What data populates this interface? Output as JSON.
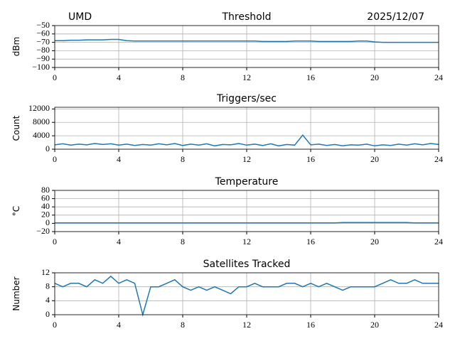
{
  "header": {
    "left": "UMD",
    "right": "2025/12/07"
  },
  "chart_data": [
    {
      "type": "line",
      "title": "Threshold",
      "ylabel": "dBm",
      "x": [
        0,
        0.5,
        1,
        1.5,
        2,
        2.5,
        3,
        3.5,
        4,
        4.5,
        5,
        5.5,
        6,
        6.5,
        7,
        7.5,
        8,
        8.5,
        9,
        9.5,
        10,
        10.5,
        11,
        11.5,
        12,
        12.5,
        13,
        13.5,
        14,
        14.5,
        15,
        15.5,
        16,
        16.5,
        17,
        17.5,
        18,
        18.5,
        19,
        19.5,
        20,
        20.5,
        21,
        21.5,
        22,
        22.5,
        23,
        23.5,
        24
      ],
      "series": [
        {
          "color": "#1f77b4",
          "values": [
            -68,
            -68,
            -67.5,
            -67.5,
            -67,
            -67,
            -67,
            -66.5,
            -66.5,
            -68,
            -68.5,
            -68.5,
            -68.5,
            -68.5,
            -68.5,
            -68.5,
            -68.5,
            -68.5,
            -68.5,
            -68.5,
            -68.5,
            -68.5,
            -68.5,
            -68.5,
            -68.5,
            -68.5,
            -69,
            -69,
            -69,
            -69,
            -68.5,
            -68.5,
            -68.5,
            -69,
            -69,
            -69,
            -69,
            -69,
            -68.5,
            -68.5,
            -69.5,
            -70,
            -70,
            -70,
            -70,
            -70,
            -70,
            -70,
            -70
          ]
        }
      ],
      "xlim": [
        0,
        24
      ],
      "xticks": [
        0,
        4,
        8,
        12,
        16,
        20,
        24
      ],
      "ylim": [
        -100,
        -50
      ],
      "yticks": [
        {
          "value": -100,
          "label": "−100"
        },
        {
          "value": -90,
          "label": "−90"
        },
        {
          "value": -80,
          "label": "−80"
        },
        {
          "value": -70,
          "label": "−70"
        },
        {
          "value": -60,
          "label": "−60"
        },
        {
          "value": -50,
          "label": "−50"
        }
      ],
      "grid": true
    },
    {
      "type": "line",
      "title": "Triggers/sec",
      "ylabel": "Count",
      "x": [
        0,
        0.5,
        1,
        1.5,
        2,
        2.5,
        3,
        3.5,
        4,
        4.5,
        5,
        5.5,
        6,
        6.5,
        7,
        7.5,
        8,
        8.5,
        9,
        9.5,
        10,
        10.5,
        11,
        11.5,
        12,
        12.5,
        13,
        13.5,
        14,
        14.5,
        15,
        15.5,
        16,
        16.5,
        17,
        17.5,
        18,
        18.5,
        19,
        19.5,
        20,
        20.5,
        21,
        21.5,
        22,
        22.5,
        23,
        23.5,
        24
      ],
      "series": [
        {
          "color": "#1f77b4",
          "values": [
            1300,
            1600,
            1200,
            1500,
            1300,
            1700,
            1400,
            1600,
            1200,
            1500,
            1100,
            1400,
            1200,
            1600,
            1300,
            1700,
            1100,
            1500,
            1200,
            1600,
            1000,
            1400,
            1300,
            1700,
            1200,
            1500,
            1100,
            1600,
            1000,
            1400,
            1200,
            4200,
            1300,
            1500,
            1100,
            1400,
            1000,
            1300,
            1200,
            1500,
            1000,
            1300,
            1100,
            1500,
            1200,
            1600,
            1300,
            1700,
            1400
          ]
        }
      ],
      "xlim": [
        0,
        24
      ],
      "xticks": [
        0,
        4,
        8,
        12,
        16,
        20,
        24
      ],
      "ylim": [
        0,
        12500
      ],
      "yticks": [
        0,
        4000,
        8000,
        12000
      ],
      "grid": true
    },
    {
      "type": "line",
      "title": "Temperature",
      "ylabel": "°C",
      "x": [
        0,
        0.5,
        1,
        1.5,
        2,
        2.5,
        3,
        3.5,
        4,
        4.5,
        5,
        5.5,
        6,
        6.5,
        7,
        7.5,
        8,
        8.5,
        9,
        9.5,
        10,
        10.5,
        11,
        11.5,
        12,
        12.5,
        13,
        13.5,
        14,
        14.5,
        15,
        15.5,
        16,
        16.5,
        17,
        17.5,
        18,
        18.5,
        19,
        19.5,
        20,
        20.5,
        21,
        21.5,
        22,
        22.5,
        23,
        23.5,
        24
      ],
      "series": [
        {
          "color": "#1f77b4",
          "values": [
            1,
            1,
            1,
            1,
            1,
            1,
            1,
            1,
            1,
            1,
            1,
            1,
            1,
            1,
            1,
            1,
            1,
            1,
            1,
            1,
            1,
            1,
            1,
            1,
            1,
            1,
            1,
            1,
            1,
            1,
            1,
            1,
            1,
            1,
            1,
            1,
            2,
            2,
            2,
            2,
            2,
            2,
            2,
            2,
            2,
            1,
            1,
            1,
            1
          ]
        }
      ],
      "xlim": [
        0,
        24
      ],
      "xticks": [
        0,
        4,
        8,
        12,
        16,
        20,
        24
      ],
      "ylim": [
        -20,
        80
      ],
      "yticks": [
        {
          "value": -20,
          "label": "−20"
        },
        0,
        20,
        40,
        60,
        80
      ],
      "grid": true
    },
    {
      "type": "line",
      "title": "Satellites Tracked",
      "ylabel": "Number",
      "x": [
        0,
        0.5,
        1,
        1.5,
        2,
        2.5,
        3,
        3.5,
        4,
        4.5,
        5,
        5.5,
        6,
        6.5,
        7,
        7.5,
        8,
        8.5,
        9,
        9.5,
        10,
        10.5,
        11,
        11.5,
        12,
        12.5,
        13,
        13.5,
        14,
        14.5,
        15,
        15.5,
        16,
        16.5,
        17,
        17.5,
        18,
        18.5,
        19,
        19.5,
        20,
        20.5,
        21,
        21.5,
        22,
        22.5,
        23,
        23.5,
        24
      ],
      "series": [
        {
          "color": "#1f77b4",
          "values": [
            9,
            8,
            9,
            9,
            8,
            10,
            9,
            11,
            9,
            10,
            9,
            0,
            8,
            8,
            9,
            10,
            8,
            7,
            8,
            7,
            8,
            7,
            6,
            8,
            8,
            9,
            8,
            8,
            8,
            9,
            9,
            8,
            9,
            8,
            9,
            8,
            7,
            8,
            8,
            8,
            8,
            9,
            10,
            9,
            9,
            10,
            9,
            9,
            9
          ]
        }
      ],
      "xlim": [
        0,
        24
      ],
      "xticks": [
        0,
        4,
        8,
        12,
        16,
        20,
        24
      ],
      "ylim": [
        0,
        12
      ],
      "yticks": [
        0,
        4,
        8,
        12
      ],
      "grid": true
    }
  ]
}
